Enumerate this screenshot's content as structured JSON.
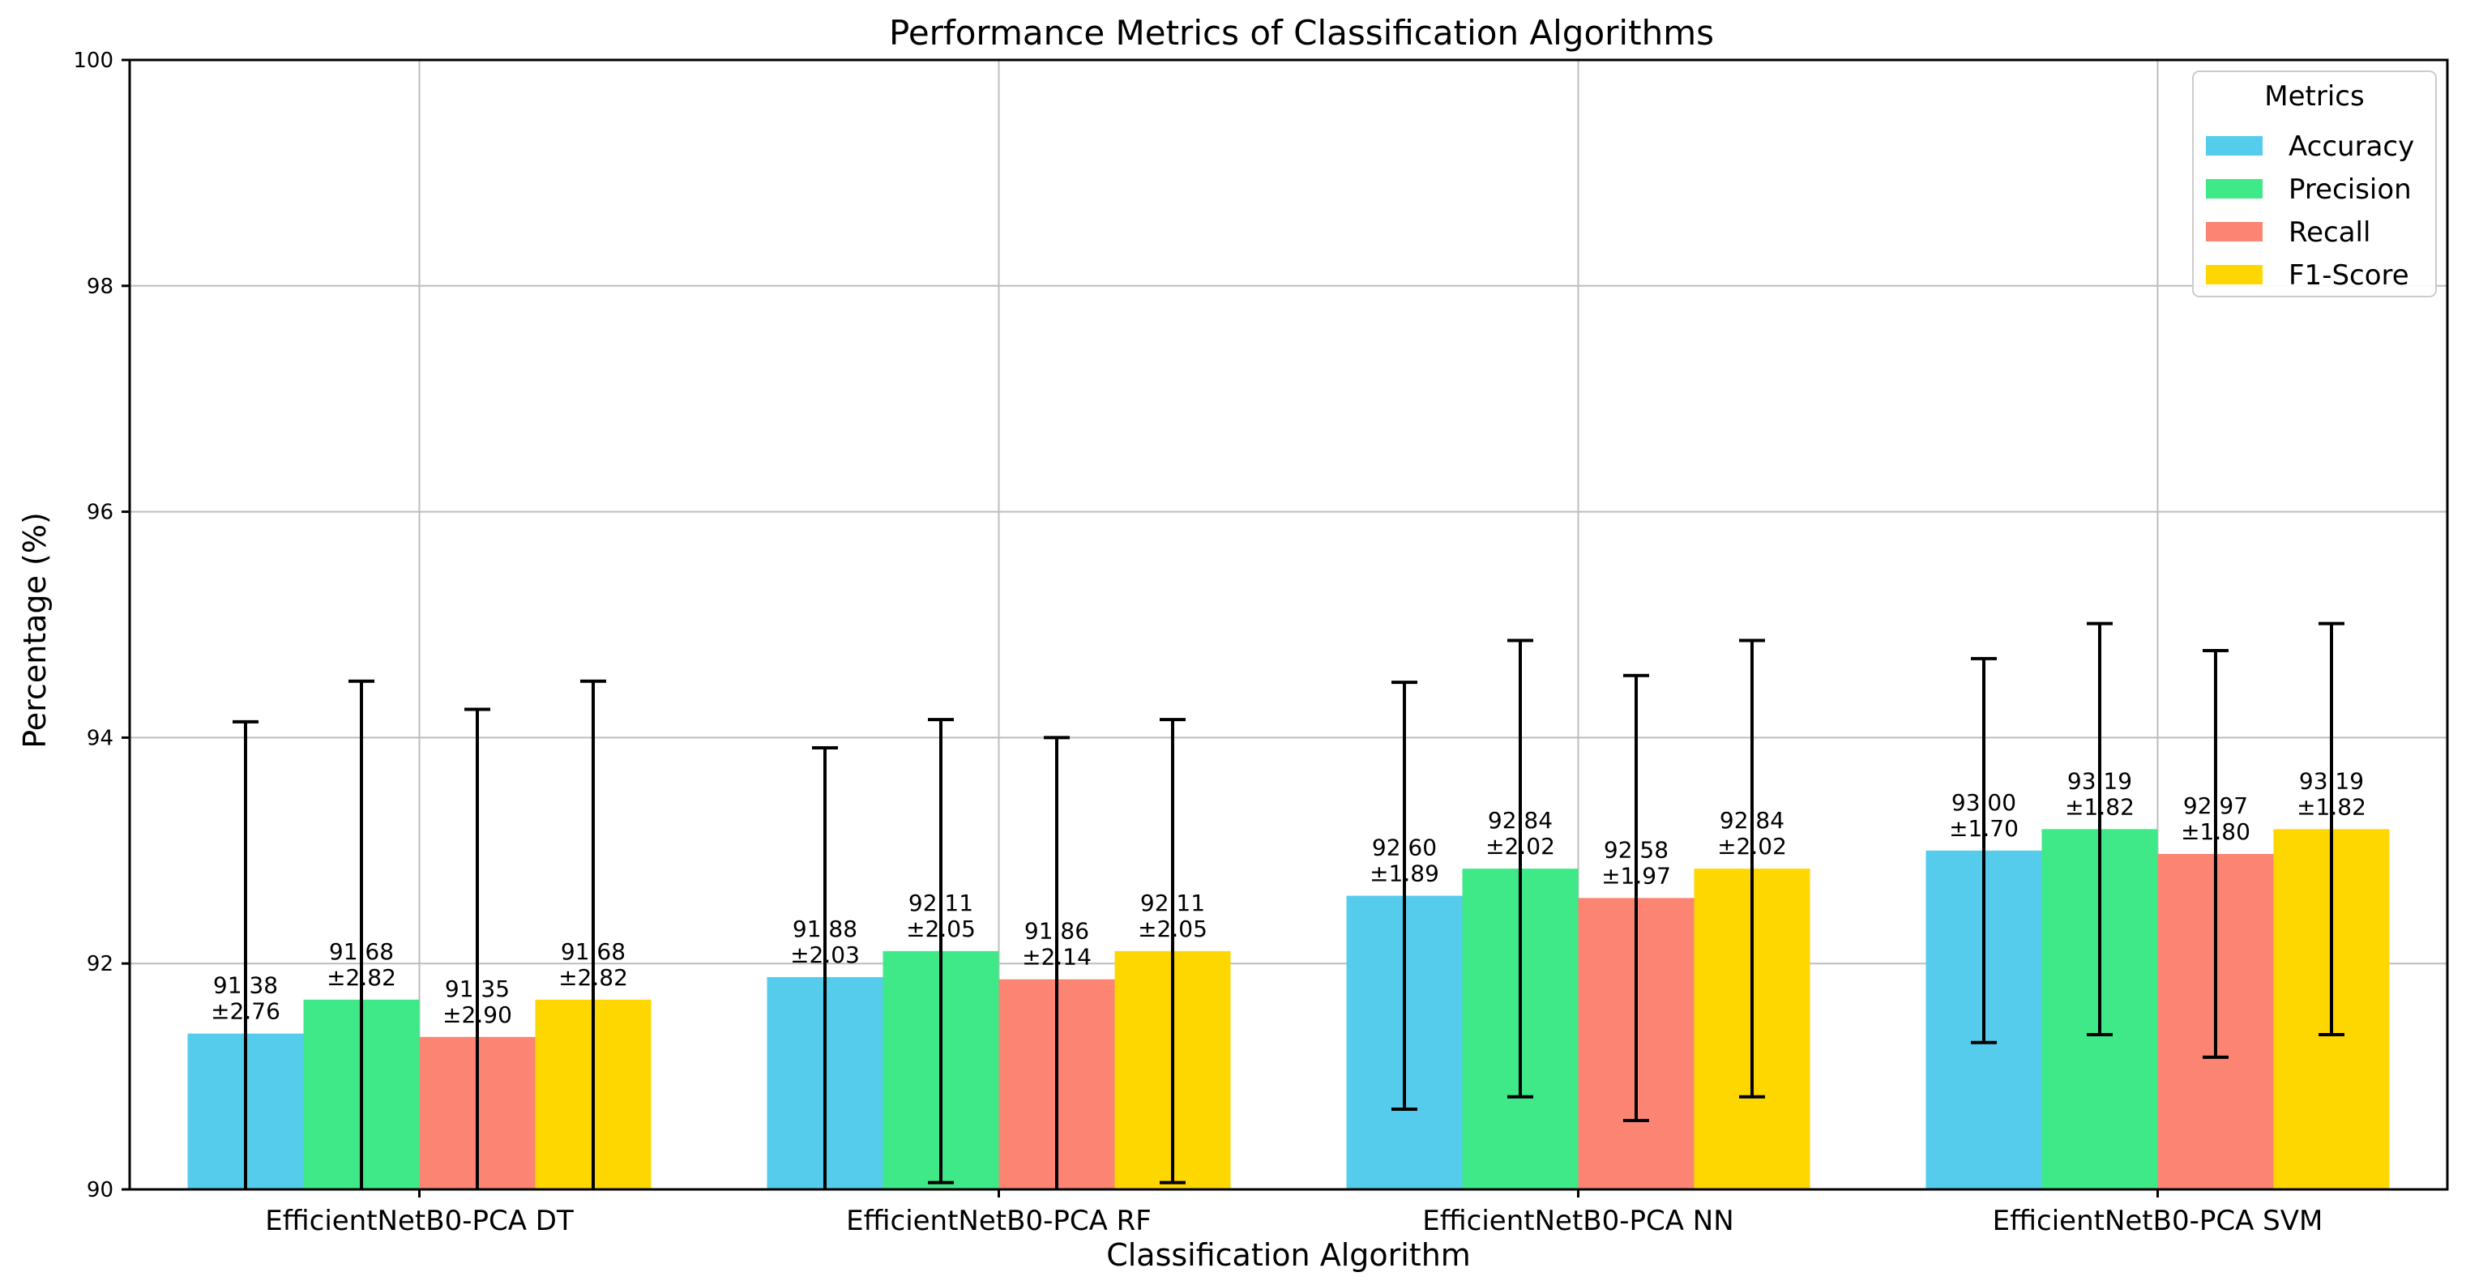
{
  "chart_data": {
    "type": "bar",
    "title": "Performance Metrics of Classification Algorithms",
    "xlabel": "Classification Algorithm",
    "ylabel": "Percentage (%)",
    "ylim": [
      90,
      100
    ],
    "yticks": [
      90,
      92,
      94,
      96,
      98,
      100
    ],
    "grid": true,
    "legend_title": "Metrics",
    "legend_position": "top-right",
    "categories": [
      "EfficientNetB0-PCA DT",
      "EfficientNetB0-PCA RF",
      "EfficientNetB0-PCA NN",
      "EfficientNetB0-PCA SVM"
    ],
    "series": [
      {
        "name": "Accuracy",
        "color": "#56ccec",
        "values": [
          91.38,
          91.88,
          92.6,
          93.0
        ],
        "errors": [
          2.76,
          2.03,
          1.89,
          1.7
        ],
        "labels": [
          "91.38\n±2.76",
          "91.88\n±2.03",
          "92.60\n±1.89",
          "93.00\n±1.70"
        ]
      },
      {
        "name": "Precision",
        "color": "#3fe988",
        "values": [
          91.68,
          92.11,
          92.84,
          93.19
        ],
        "errors": [
          2.82,
          2.05,
          2.02,
          1.82
        ],
        "labels": [
          "91.68\n±2.82",
          "92.11\n±2.05",
          "92.84\n±2.02",
          "93.19\n±1.82"
        ]
      },
      {
        "name": "Recall",
        "color": "#fc8473",
        "values": [
          91.35,
          91.86,
          92.58,
          92.97
        ],
        "errors": [
          2.9,
          2.14,
          1.97,
          1.8
        ],
        "labels": [
          "91.35\n±2.90",
          "91.86\n±2.14",
          "92.58\n±1.97",
          "92.97\n±1.80"
        ]
      },
      {
        "name": "F1-Score",
        "color": "#ffd700",
        "values": [
          91.68,
          92.11,
          92.84,
          93.19
        ],
        "errors": [
          2.82,
          2.05,
          2.02,
          1.82
        ],
        "labels": [
          "91.68\n±2.82",
          "92.11\n±2.05",
          "92.84\n±2.02",
          "93.19\n±1.82"
        ]
      }
    ]
  }
}
